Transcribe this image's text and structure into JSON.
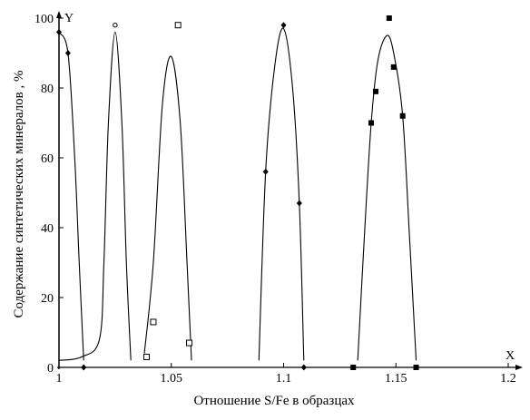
{
  "chart_data": {
    "type": "scatter",
    "title": "",
    "xlabel": "Отношение S/Fe в образцах",
    "ylabel": "Содержание синтетических минералов , %",
    "x_axis_letter": "X",
    "y_axis_letter": "Y",
    "xlim": [
      1.0,
      1.2
    ],
    "ylim": [
      0,
      100
    ],
    "x_ticks": [
      1.0,
      1.05,
      1.1,
      1.15,
      1.2
    ],
    "x_tick_labels": [
      "1",
      "1.05",
      "1.1",
      "1.15",
      "1.2"
    ],
    "y_ticks": [
      0,
      20,
      40,
      60,
      80,
      100
    ],
    "y_tick_labels": [
      "0",
      "20",
      "40",
      "60",
      "80",
      "100"
    ],
    "grid": false,
    "legend": "none",
    "series": [
      {
        "marker": "diamond",
        "points": [
          {
            "x": 1.0,
            "y": 96
          },
          {
            "x": 1.004,
            "y": 90
          },
          {
            "x": 1.011,
            "y": 0
          }
        ],
        "curve": [
          [
            1.0,
            96
          ],
          [
            1.004,
            90
          ],
          [
            1.007,
            60
          ],
          [
            1.009,
            30
          ],
          [
            1.011,
            2
          ]
        ]
      },
      {
        "marker": "circle",
        "points": [
          {
            "x": 1.025,
            "y": 98
          }
        ],
        "curve": [
          [
            1.0,
            2
          ],
          [
            1.01,
            3
          ],
          [
            1.018,
            8
          ],
          [
            1.02,
            30
          ],
          [
            1.022,
            70
          ],
          [
            1.025,
            96
          ],
          [
            1.028,
            70
          ],
          [
            1.03,
            30
          ],
          [
            1.032,
            2
          ]
        ]
      },
      {
        "marker": "square-open",
        "points": [
          {
            "x": 1.039,
            "y": 3
          },
          {
            "x": 1.042,
            "y": 13
          },
          {
            "x": 1.053,
            "y": 98
          },
          {
            "x": 1.058,
            "y": 7
          }
        ],
        "curve": [
          [
            1.038,
            4
          ],
          [
            1.042,
            30
          ],
          [
            1.046,
            75
          ],
          [
            1.05,
            89
          ],
          [
            1.054,
            70
          ],
          [
            1.057,
            30
          ],
          [
            1.059,
            2
          ]
        ]
      },
      {
        "marker": "diamond",
        "points": [
          {
            "x": 1.092,
            "y": 56
          },
          {
            "x": 1.1,
            "y": 98
          },
          {
            "x": 1.107,
            "y": 47
          },
          {
            "x": 1.109,
            "y": 0
          }
        ],
        "curve": [
          [
            1.089,
            2
          ],
          [
            1.092,
            56
          ],
          [
            1.096,
            86
          ],
          [
            1.1,
            97
          ],
          [
            1.104,
            80
          ],
          [
            1.107,
            47
          ],
          [
            1.109,
            2
          ]
        ]
      },
      {
        "marker": "square-filled",
        "points": [
          {
            "x": 1.131,
            "y": 0
          },
          {
            "x": 1.139,
            "y": 70
          },
          {
            "x": 1.141,
            "y": 79
          },
          {
            "x": 1.147,
            "y": 100
          },
          {
            "x": 1.149,
            "y": 86
          },
          {
            "x": 1.153,
            "y": 72
          },
          {
            "x": 1.159,
            "y": 0
          }
        ],
        "curve": [
          [
            1.133,
            2
          ],
          [
            1.136,
            38
          ],
          [
            1.139,
            70
          ],
          [
            1.142,
            88
          ],
          [
            1.146,
            95
          ],
          [
            1.149,
            90
          ],
          [
            1.153,
            72
          ],
          [
            1.156,
            38
          ],
          [
            1.159,
            2
          ]
        ]
      }
    ]
  }
}
